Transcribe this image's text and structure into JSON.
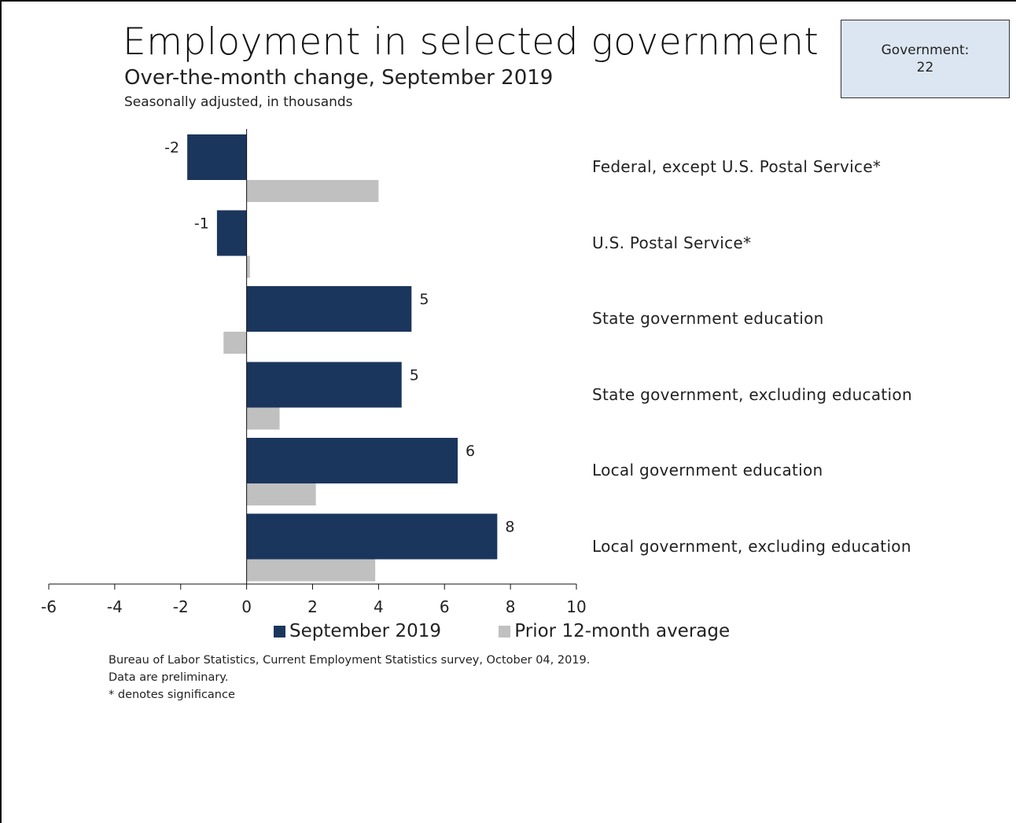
{
  "title": "Employment in selected government",
  "subtitle": "Over-the-month change, September 2019",
  "units_note": "Seasonally adjusted, in thousands",
  "callout": {
    "label": "Government:",
    "value": "22"
  },
  "legend": {
    "series1": "September 2019",
    "series2": "Prior 12-month average"
  },
  "source": {
    "line1": "Bureau of Labor Statistics, Current Employment Statistics survey, October 04, 2019.",
    "line2": "Data are preliminary.",
    "line3": "* denotes significance"
  },
  "colors": {
    "september": "#1b365d",
    "prior": "#c0c0c0"
  },
  "chart_data": {
    "type": "bar",
    "orientation": "horizontal",
    "categories": [
      "Federal, except U.S. Postal Service*",
      "U.S. Postal Service*",
      "State government education",
      "State government, excluding education",
      "Local government education",
      "Local government, excluding education"
    ],
    "series": [
      {
        "name": "September 2019",
        "values": [
          -1.8,
          -0.9,
          5.0,
          4.7,
          6.4,
          7.6
        ],
        "data_labels": [
          "-2",
          "-1",
          "5",
          "5",
          "6",
          "8"
        ]
      },
      {
        "name": "Prior 12-month average",
        "values": [
          4.0,
          0.1,
          -0.7,
          1.0,
          2.1,
          3.9
        ]
      }
    ],
    "xlim": [
      -6,
      10
    ],
    "xticks": [
      "-6",
      "-4",
      "-2",
      "0",
      "2",
      "4",
      "6",
      "8",
      "10"
    ],
    "grid": false,
    "legend_position": "bottom"
  }
}
